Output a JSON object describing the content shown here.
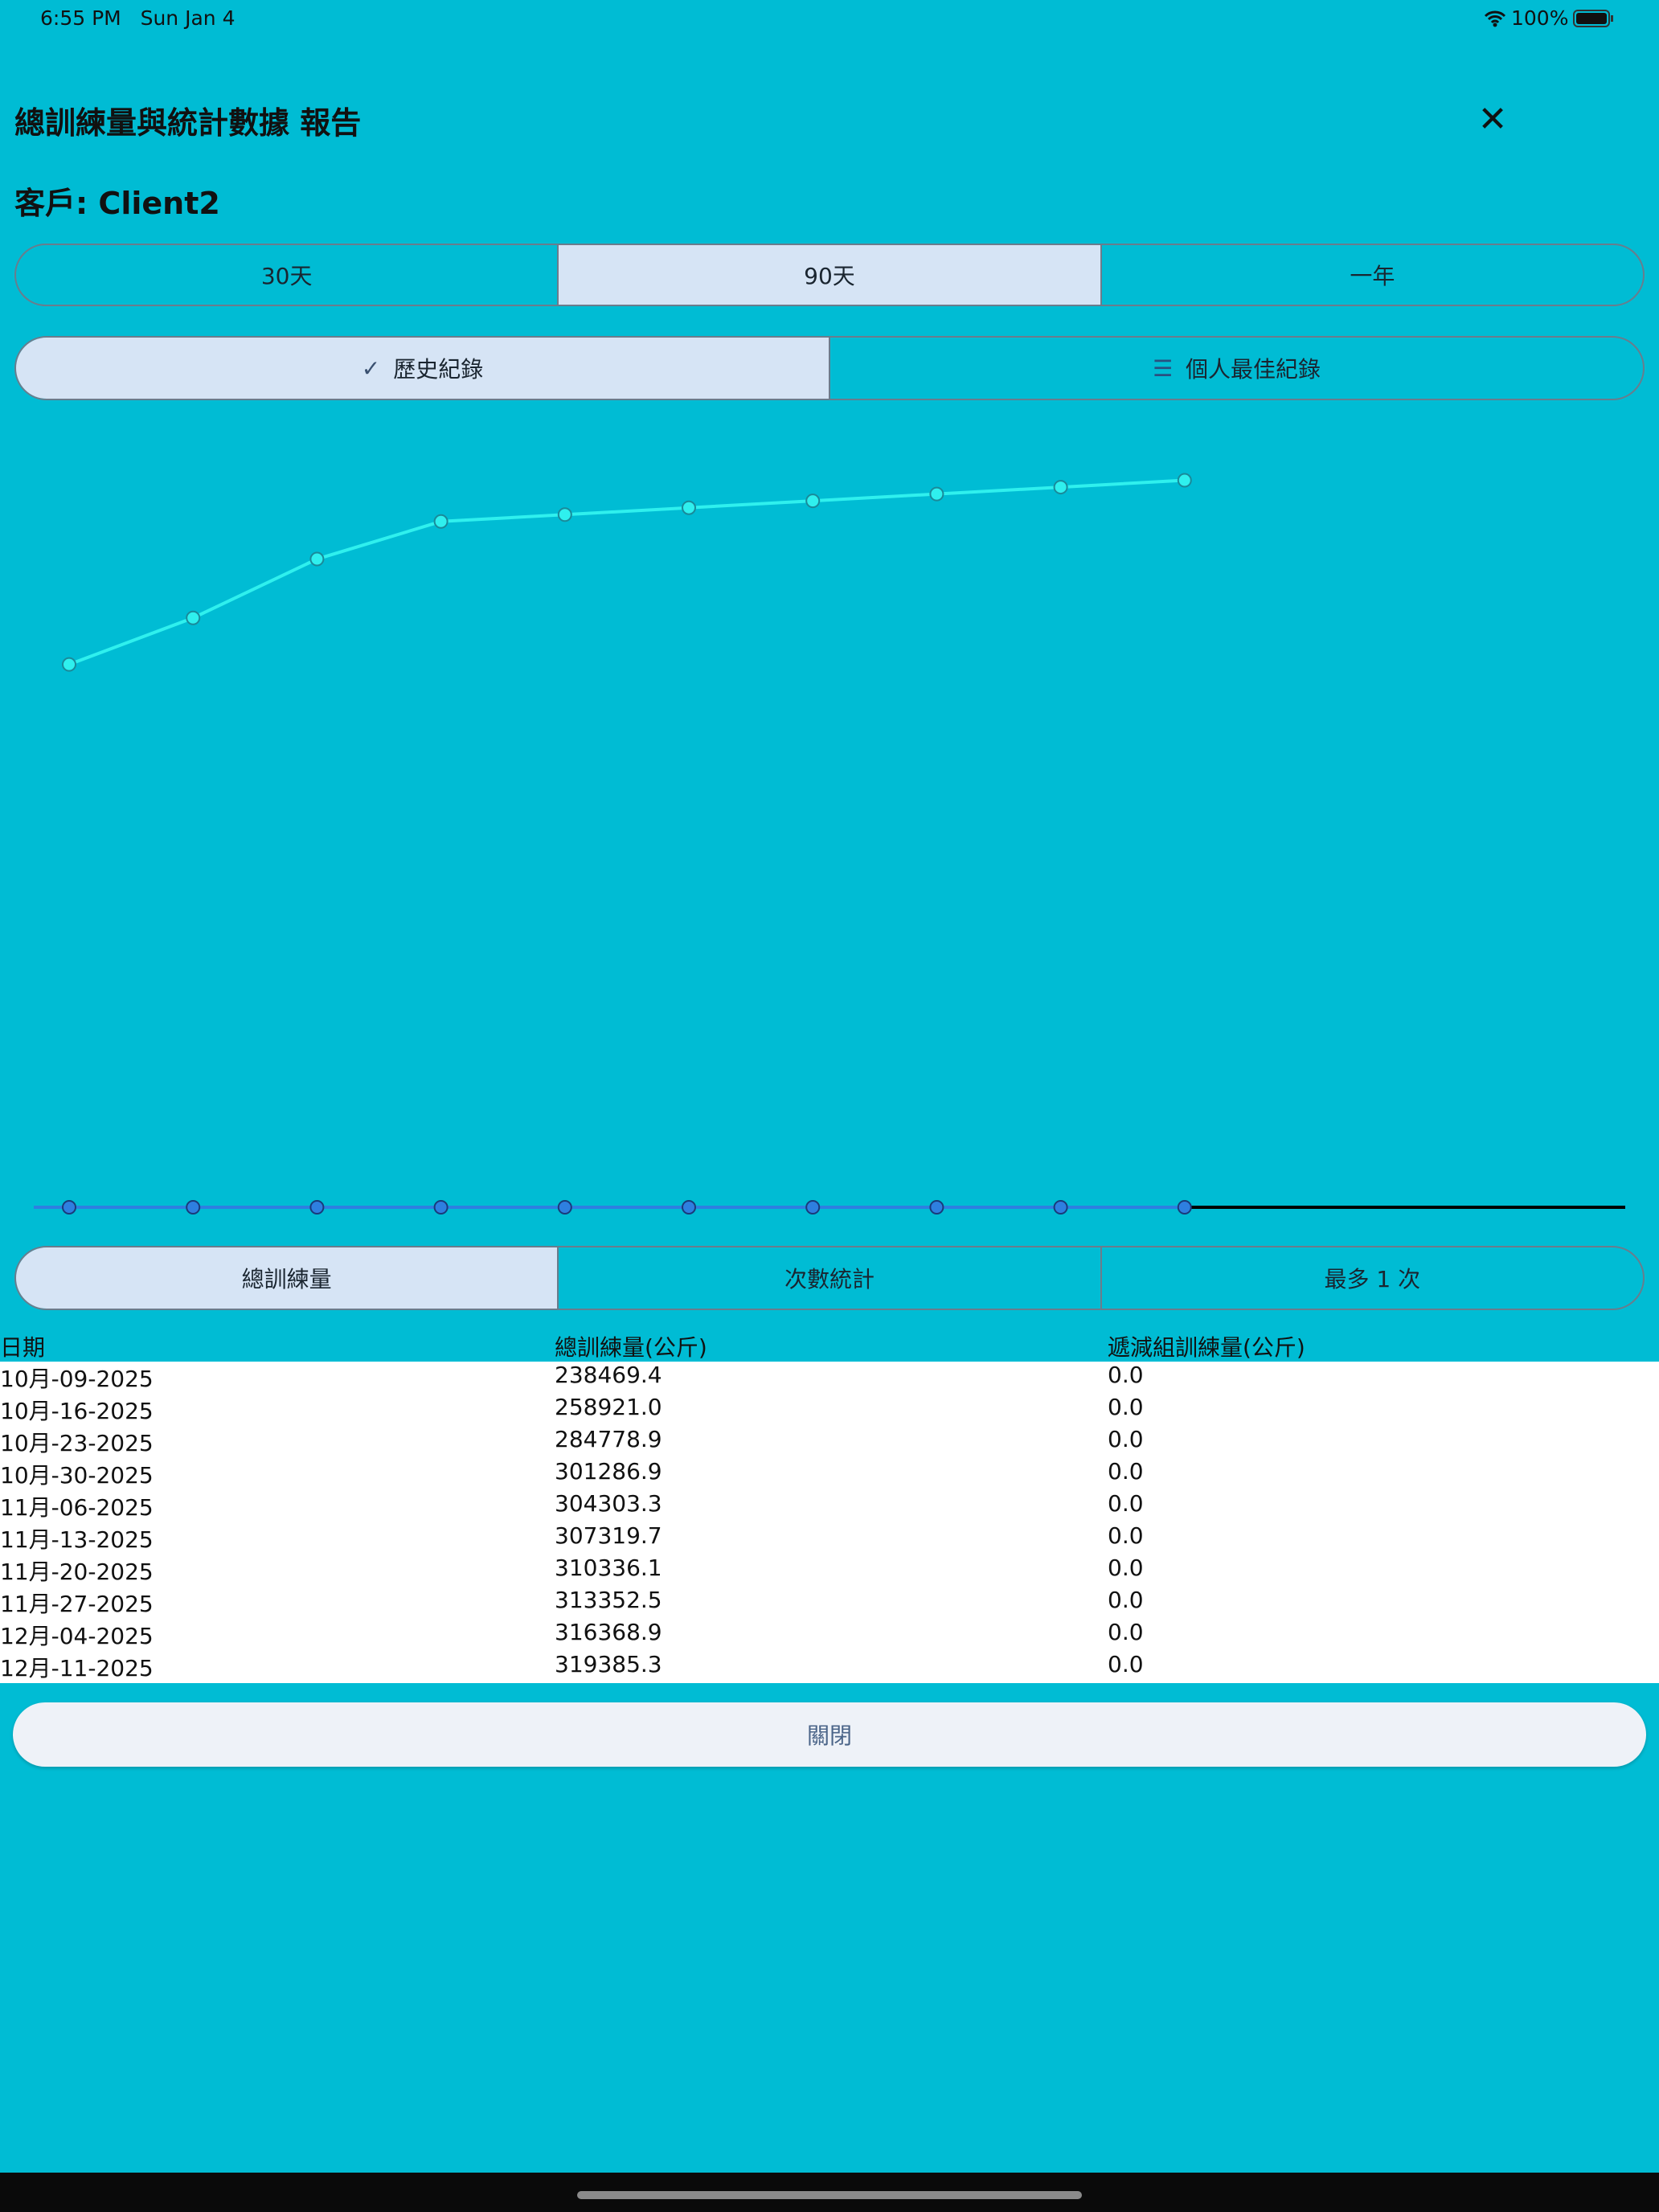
{
  "status": {
    "time": "6:55 PM",
    "date": "Sun Jan 4",
    "battery": "100%"
  },
  "header": {
    "title": "總訓練量與統計數據 報告",
    "client": "客戶: Client2"
  },
  "range_tabs": [
    {
      "label": "30天",
      "selected": false
    },
    {
      "label": "90天",
      "selected": true
    },
    {
      "label": "一年",
      "selected": false
    }
  ],
  "view_tabs": [
    {
      "label": "歷史紀錄",
      "icon": "check-icon",
      "selected": true
    },
    {
      "label": "個人最佳紀錄",
      "icon": "list-icon",
      "selected": false
    }
  ],
  "metric_tabs": [
    {
      "label": "總訓練量",
      "selected": true
    },
    {
      "label": "次數統計",
      "selected": false
    },
    {
      "label": "最多 1 次",
      "selected": false
    }
  ],
  "chart_data": {
    "type": "line",
    "x": [
      "10月-09-2025",
      "10月-16-2025",
      "10月-23-2025",
      "10月-30-2025",
      "11月-06-2025",
      "11月-13-2025",
      "11月-20-2025",
      "11月-27-2025",
      "12月-04-2025",
      "12月-11-2025"
    ],
    "values": [
      238469.4,
      258921.0,
      284778.9,
      301286.9,
      304303.3,
      307319.7,
      310336.1,
      313352.5,
      316368.9,
      319385.3
    ],
    "ylim": [
      0,
      351000
    ],
    "grid": false,
    "colors": {
      "line": "#2ff0ee",
      "point": "#2ff0ee",
      "axis_point": "#2e7fe0",
      "axis": "#000000"
    }
  },
  "table": {
    "headers": [
      "日期",
      "總訓練量(公斤)",
      "遞減組訓練量(公斤)"
    ],
    "rows": [
      [
        "10月-09-2025",
        "238469.4",
        "0.0"
      ],
      [
        "10月-16-2025",
        "258921.0",
        "0.0"
      ],
      [
        "10月-23-2025",
        "284778.9",
        "0.0"
      ],
      [
        "10月-30-2025",
        "301286.9",
        "0.0"
      ],
      [
        "11月-06-2025",
        "304303.3",
        "0.0"
      ],
      [
        "11月-13-2025",
        "307319.7",
        "0.0"
      ],
      [
        "11月-20-2025",
        "310336.1",
        "0.0"
      ],
      [
        "11月-27-2025",
        "313352.5",
        "0.0"
      ],
      [
        "12月-04-2025",
        "316368.9",
        "0.0"
      ],
      [
        "12月-11-2025",
        "319385.3",
        "0.0"
      ]
    ]
  },
  "close_label": "關閉",
  "close_icon": "close-icon"
}
